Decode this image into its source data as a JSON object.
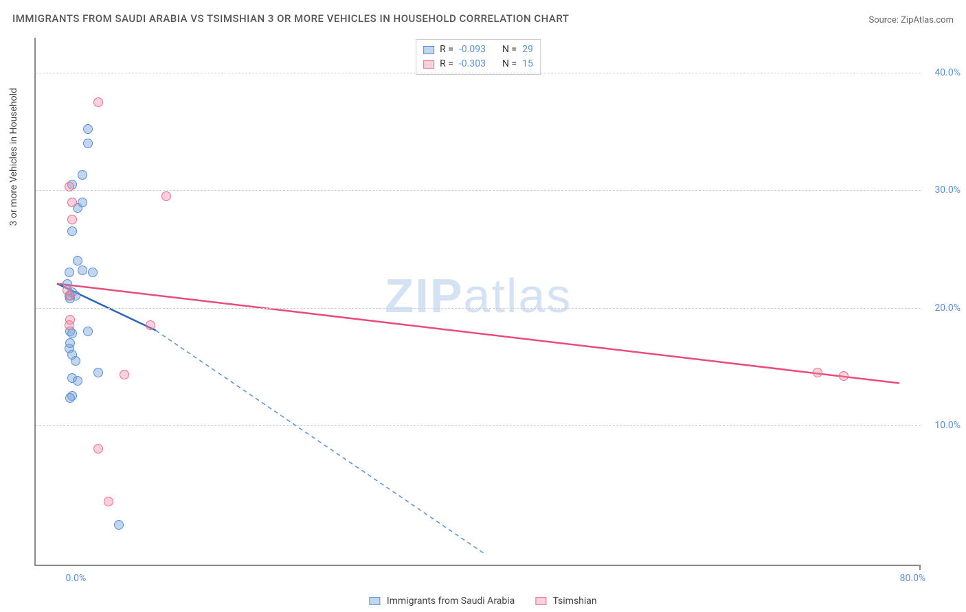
{
  "title": "IMMIGRANTS FROM SAUDI ARABIA VS TSIMSHIAN 3 OR MORE VEHICLES IN HOUSEHOLD CORRELATION CHART",
  "source": "Source: ZipAtlas.com",
  "ylabel": "3 or more Vehicles in Household",
  "watermark_a": "ZIP",
  "watermark_b": "atlas",
  "chart": {
    "type": "scatter-with-trendlines",
    "background_color": "#ffffff",
    "grid_color": "#d0d0d0",
    "grid_dash": "4,4",
    "axis_color": "#8a8a8a",
    "xlim": [
      -3,
      82
    ],
    "ylim": [
      -2,
      43
    ],
    "xticks": [
      {
        "v": 0.0,
        "label": "0.0%"
      },
      {
        "v": 80.0,
        "label": "80.0%"
      }
    ],
    "yticks": [
      {
        "v": 10.0,
        "label": "10.0%"
      },
      {
        "v": 20.0,
        "label": "20.0%"
      },
      {
        "v": 30.0,
        "label": "30.0%"
      },
      {
        "v": 40.0,
        "label": "40.0%"
      }
    ],
    "point_radius": 7,
    "point_border_width": 1.5,
    "series": [
      {
        "name": "Immigrants from Saudi Arabia",
        "fill": "rgba(120,165,216,0.45)",
        "stroke": "#5b8fd6",
        "line_color": "#2f66b3",
        "line_width": 2.5,
        "dash_color": "#5b8fd6",
        "R": "-0.093",
        "N": "29",
        "points": [
          [
            0.0,
            22.0
          ],
          [
            0.2,
            21.0
          ],
          [
            0.3,
            20.8
          ],
          [
            0.5,
            21.3
          ],
          [
            0.8,
            21.0
          ],
          [
            0.2,
            23.0
          ],
          [
            1.0,
            24.0
          ],
          [
            1.5,
            23.2
          ],
          [
            2.5,
            23.0
          ],
          [
            0.5,
            26.5
          ],
          [
            1.0,
            28.5
          ],
          [
            1.5,
            29.0
          ],
          [
            0.5,
            30.5
          ],
          [
            1.5,
            31.3
          ],
          [
            2.0,
            34.0
          ],
          [
            2.0,
            35.2
          ],
          [
            0.3,
            18.0
          ],
          [
            0.5,
            17.8
          ],
          [
            0.8,
            15.5
          ],
          [
            0.2,
            16.5
          ],
          [
            0.5,
            16.0
          ],
          [
            0.5,
            14.0
          ],
          [
            1.0,
            13.8
          ],
          [
            0.5,
            12.5
          ],
          [
            0.3,
            12.3
          ],
          [
            0.3,
            17.0
          ],
          [
            2.0,
            18.0
          ],
          [
            5.0,
            1.5
          ],
          [
            3.0,
            14.5
          ]
        ],
        "trend_solid": [
          [
            -1.0,
            22.0
          ],
          [
            8.5,
            18.0
          ]
        ],
        "trend_dash": [
          [
            8.5,
            18.0
          ],
          [
            40.0,
            -1.0
          ]
        ]
      },
      {
        "name": "Tsimshian",
        "fill": "rgba(235,140,165,0.40)",
        "stroke": "#e86e8f",
        "line_color": "#e84c78",
        "line_width": 2.5,
        "R": "-0.303",
        "N": "15",
        "points": [
          [
            0.0,
            21.5
          ],
          [
            0.2,
            30.3
          ],
          [
            0.5,
            29.0
          ],
          [
            0.5,
            27.5
          ],
          [
            0.3,
            21.0
          ],
          [
            0.3,
            19.0
          ],
          [
            0.2,
            18.5
          ],
          [
            3.0,
            37.5
          ],
          [
            9.5,
            29.5
          ],
          [
            8.0,
            18.5
          ],
          [
            5.5,
            14.3
          ],
          [
            3.0,
            8.0
          ],
          [
            4.0,
            3.5
          ],
          [
            72.0,
            14.5
          ],
          [
            74.5,
            14.2
          ]
        ],
        "trend_solid": [
          [
            -1.0,
            22.0
          ],
          [
            80.0,
            13.5
          ]
        ]
      }
    ]
  },
  "statbox": {
    "r_label": "R =",
    "n_label": "N ="
  },
  "legend": {
    "items": [
      {
        "label": "Immigrants from Saudi Arabia"
      },
      {
        "label": "Tsimshian"
      }
    ]
  }
}
